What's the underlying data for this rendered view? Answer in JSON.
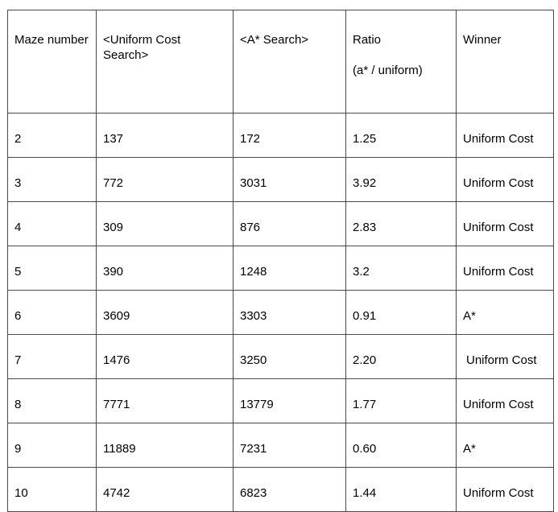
{
  "table": {
    "headers": {
      "maze": "Maze number",
      "uniform": "<Uniform Cost Search>",
      "astar": "<A* Search>",
      "ratio": "Ratio",
      "ratio_sub": "(a* / uniform)",
      "winner": "Winner"
    },
    "rows": [
      {
        "maze": "2",
        "uniform": "137",
        "astar": "172",
        "ratio": "1.25",
        "winner": "Uniform Cost"
      },
      {
        "maze": "3",
        "uniform": "772",
        "astar": "3031",
        "ratio": "3.92",
        "winner": "Uniform Cost"
      },
      {
        "maze": "4",
        "uniform": "309",
        "astar": "876",
        "ratio": "2.83",
        "winner": "Uniform Cost"
      },
      {
        "maze": "5",
        "uniform": "390",
        "astar": "1248",
        "ratio": "3.2",
        "winner": "Uniform Cost"
      },
      {
        "maze": "6",
        "uniform": "3609",
        "astar": "3303",
        "ratio": "0.91",
        "winner": "A*"
      },
      {
        "maze": "7",
        "uniform": "1476",
        "astar": "3250",
        "ratio": "2.20",
        "winner": "Uniform Cost"
      },
      {
        "maze": "8",
        "uniform": "7771",
        "astar": "13779",
        "ratio": "1.77",
        "winner": "Uniform Cost"
      },
      {
        "maze": "9",
        "uniform": "11889",
        "astar": "7231",
        "ratio": "0.60",
        "winner": "A*"
      },
      {
        "maze": "10",
        "uniform": "4742",
        "astar": "6823",
        "ratio": "1.44",
        "winner": "Uniform Cost"
      }
    ]
  }
}
